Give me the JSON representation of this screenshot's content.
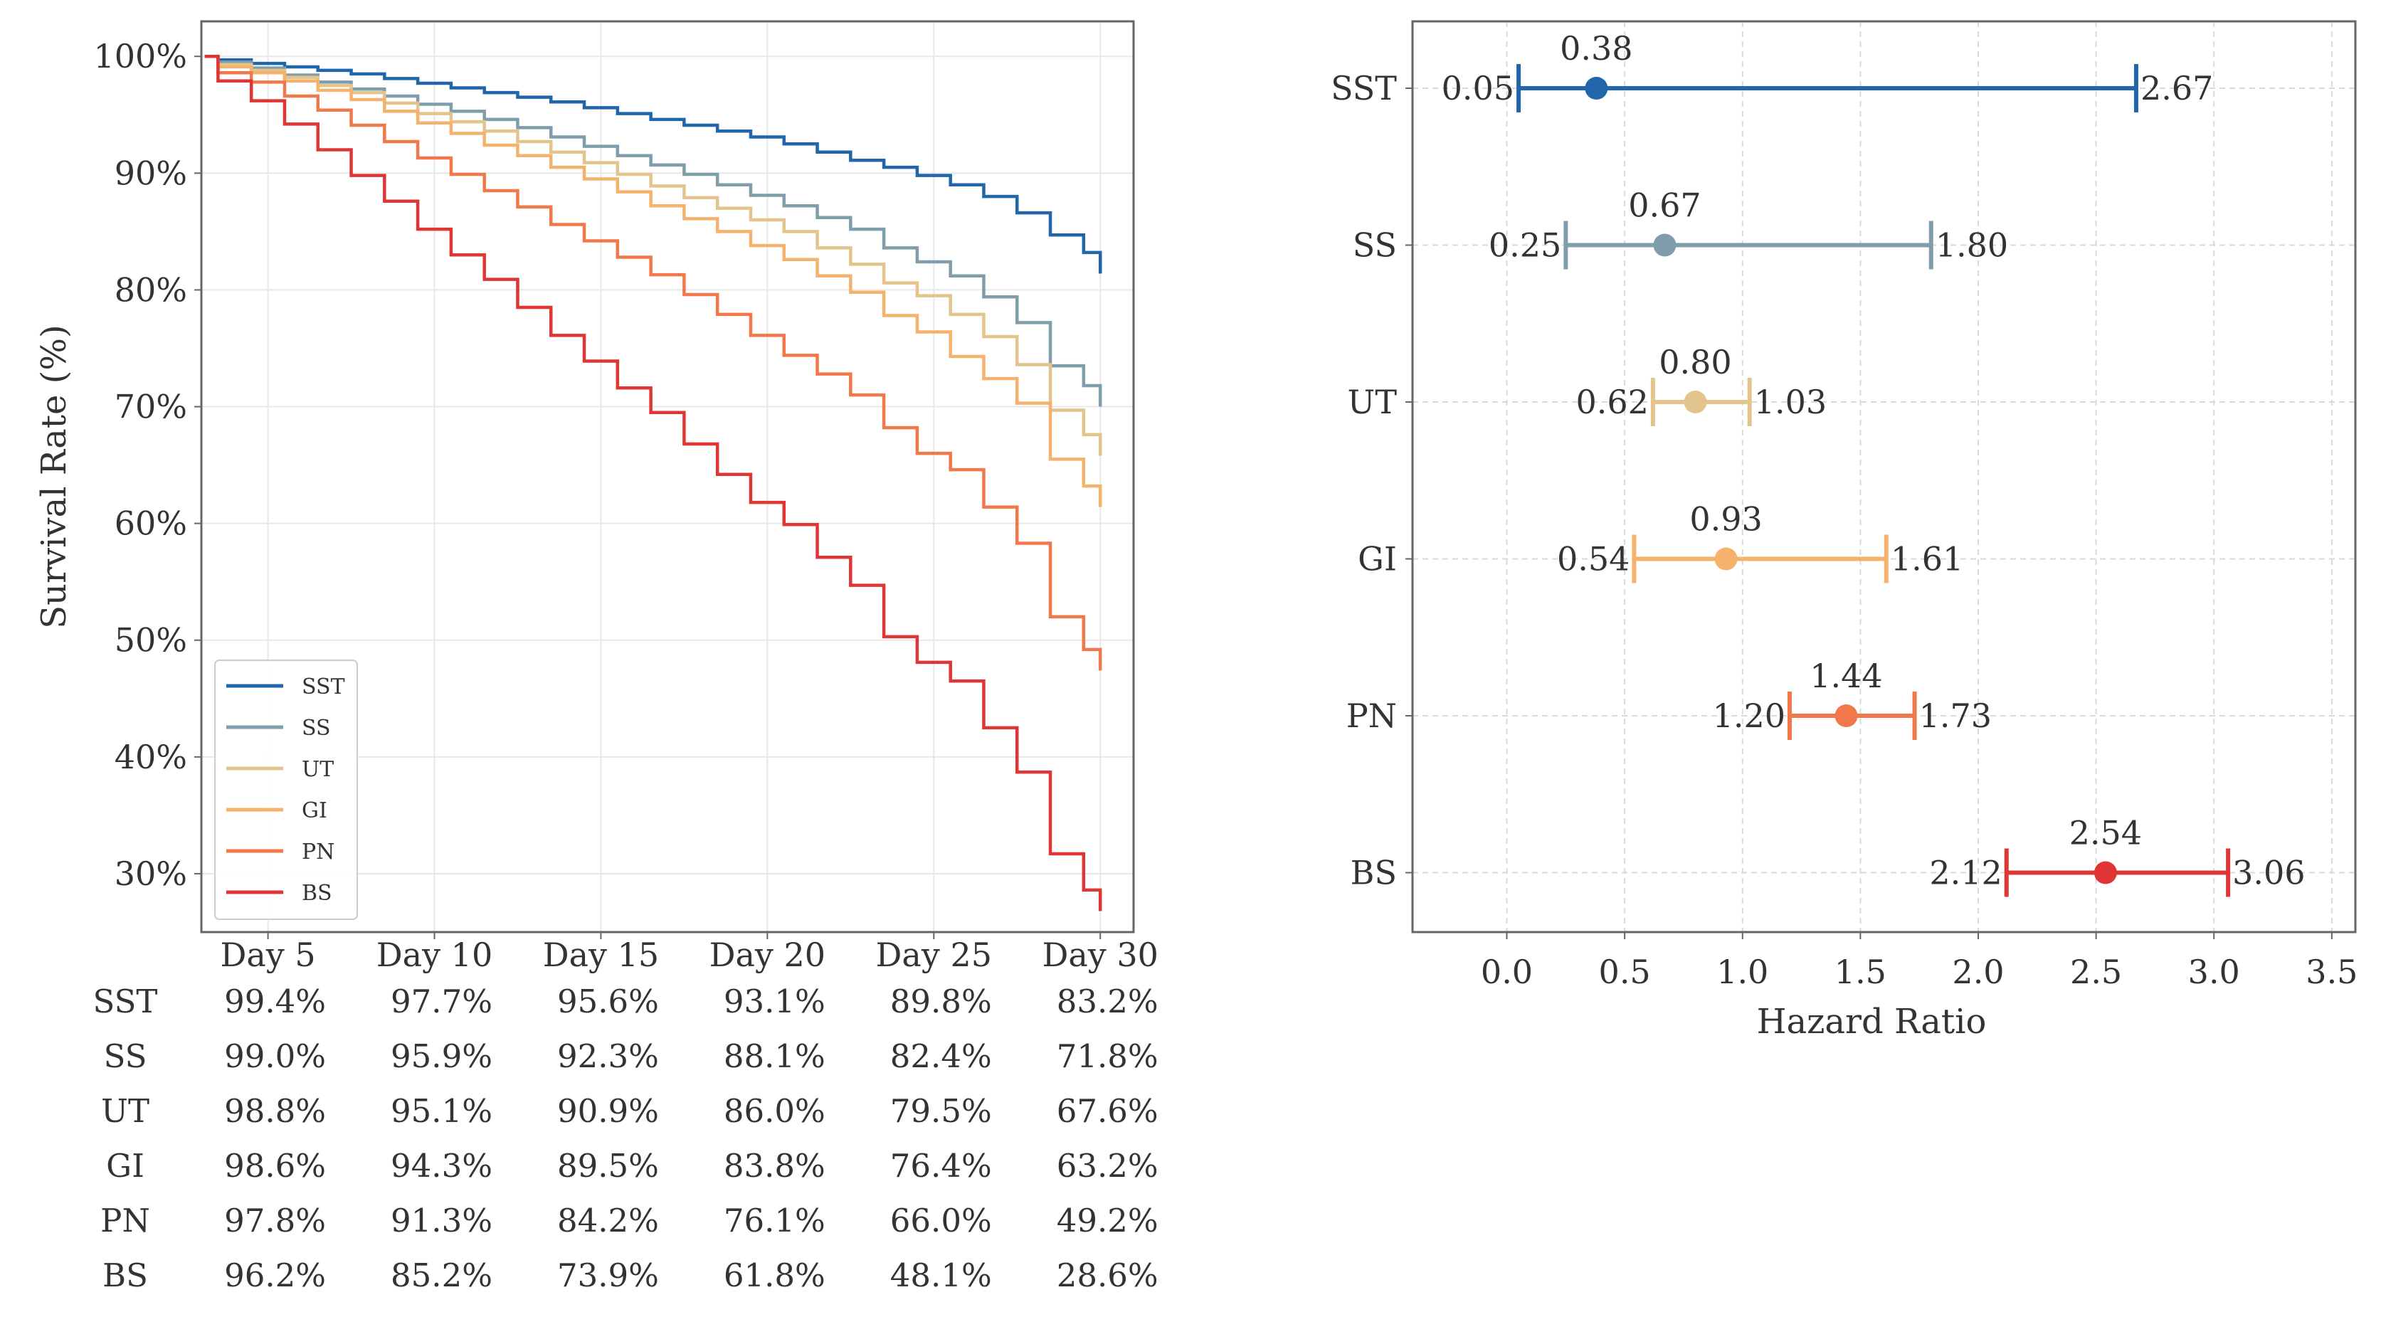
{
  "chart_data": [
    {
      "type": "line",
      "step": true,
      "ylabel": "Survival Rate (%)",
      "xlabel": "",
      "xlim": [
        3,
        31
      ],
      "ylim": [
        25,
        103
      ],
      "y_ticks": [
        {
          "value": 30,
          "label": "30%"
        },
        {
          "value": 40,
          "label": "40%"
        },
        {
          "value": 50,
          "label": "50%"
        },
        {
          "value": 60,
          "label": "60%"
        },
        {
          "value": 70,
          "label": "70%"
        },
        {
          "value": 80,
          "label": "80%"
        },
        {
          "value": 90,
          "label": "90%"
        },
        {
          "value": 100,
          "label": "100%"
        }
      ],
      "x_ticks": [
        {
          "value": 5,
          "label": "Day 5"
        },
        {
          "value": 10,
          "label": "Day 10"
        },
        {
          "value": 15,
          "label": "Day 15"
        },
        {
          "value": 20,
          "label": "Day 20"
        },
        {
          "value": 25,
          "label": "Day 25"
        },
        {
          "value": 30,
          "label": "Day 30"
        }
      ],
      "grid": true,
      "legend_position": "bottom-left",
      "x": [
        4,
        5,
        6,
        7,
        8,
        9,
        10,
        11,
        12,
        13,
        14,
        15,
        16,
        17,
        18,
        19,
        20,
        21,
        22,
        23,
        24,
        25,
        26,
        27,
        28,
        29,
        30
      ],
      "series": [
        {
          "name": "SST",
          "color": "#1f66aa",
          "values": [
            99.7,
            99.4,
            99.1,
            98.8,
            98.5,
            98.1,
            97.7,
            97.3,
            96.9,
            96.5,
            96.1,
            95.6,
            95.1,
            94.6,
            94.1,
            93.6,
            93.1,
            92.5,
            91.8,
            91.1,
            90.5,
            89.8,
            89.0,
            88.0,
            86.6,
            84.7,
            83.2
          ]
        },
        {
          "name": "SS",
          "color": "#7f9daa",
          "values": [
            99.5,
            99.0,
            98.4,
            97.8,
            97.2,
            96.6,
            95.9,
            95.3,
            94.6,
            93.9,
            93.1,
            92.3,
            91.5,
            90.7,
            89.9,
            89.0,
            88.1,
            87.2,
            86.2,
            85.2,
            83.6,
            82.4,
            81.2,
            79.4,
            77.2,
            73.5,
            71.8
          ]
        },
        {
          "name": "UT",
          "color": "#e3c48c",
          "values": [
            99.3,
            98.8,
            98.2,
            97.5,
            96.9,
            96.0,
            95.1,
            94.4,
            93.6,
            92.7,
            91.8,
            90.9,
            89.9,
            88.9,
            87.9,
            87.0,
            86.0,
            85.0,
            83.6,
            82.2,
            80.6,
            79.5,
            77.9,
            76.0,
            73.6,
            69.7,
            67.6
          ]
        },
        {
          "name": "GI",
          "color": "#f5b26c",
          "values": [
            99.1,
            98.6,
            97.9,
            97.1,
            96.3,
            95.3,
            94.3,
            93.4,
            92.4,
            91.5,
            90.5,
            89.5,
            88.4,
            87.2,
            86.1,
            85.0,
            83.8,
            82.6,
            81.2,
            79.8,
            77.8,
            76.4,
            74.3,
            72.4,
            70.3,
            65.5,
            63.2
          ]
        },
        {
          "name": "PN",
          "color": "#f0784a",
          "values": [
            98.6,
            97.8,
            96.6,
            95.4,
            94.1,
            92.7,
            91.3,
            89.9,
            88.5,
            87.1,
            85.6,
            84.2,
            82.8,
            81.3,
            79.6,
            77.9,
            76.1,
            74.4,
            72.8,
            71.0,
            68.2,
            66.0,
            64.6,
            61.4,
            58.3,
            52.0,
            49.2
          ]
        },
        {
          "name": "BS",
          "color": "#e03535",
          "values": [
            97.9,
            96.2,
            94.2,
            92.0,
            89.8,
            87.6,
            85.2,
            83.0,
            80.9,
            78.5,
            76.1,
            73.9,
            71.6,
            69.5,
            66.8,
            64.2,
            61.8,
            59.9,
            57.1,
            54.7,
            50.3,
            48.1,
            46.5,
            42.5,
            38.7,
            31.7,
            28.6
          ]
        }
      ]
    },
    {
      "type": "table",
      "columns": [
        "Day 5",
        "Day 10",
        "Day 15",
        "Day 20",
        "Day 25",
        "Day 30"
      ],
      "rows": [
        {
          "name": "SST",
          "values": [
            "99.4%",
            "97.7%",
            "95.6%",
            "93.1%",
            "89.8%",
            "83.2%"
          ]
        },
        {
          "name": "SS",
          "values": [
            "99.0%",
            "95.9%",
            "92.3%",
            "88.1%",
            "82.4%",
            "71.8%"
          ]
        },
        {
          "name": "UT",
          "values": [
            "98.8%",
            "95.1%",
            "90.9%",
            "86.0%",
            "79.5%",
            "67.6%"
          ]
        },
        {
          "name": "GI",
          "values": [
            "98.6%",
            "94.3%",
            "89.5%",
            "83.8%",
            "76.4%",
            "63.2%"
          ]
        },
        {
          "name": "PN",
          "values": [
            "97.8%",
            "91.3%",
            "84.2%",
            "76.1%",
            "66.0%",
            "49.2%"
          ]
        },
        {
          "name": "BS",
          "values": [
            "96.2%",
            "85.2%",
            "73.9%",
            "61.8%",
            "48.1%",
            "28.6%"
          ]
        }
      ]
    },
    {
      "type": "scatter",
      "subtype": "forest",
      "xlabel": "Hazard Ratio",
      "ylabel": "",
      "xlim": [
        -0.4,
        3.6
      ],
      "x_ticks": [
        {
          "value": 0.0,
          "label": "0.0"
        },
        {
          "value": 0.5,
          "label": "0.5"
        },
        {
          "value": 1.0,
          "label": "1.0"
        },
        {
          "value": 1.5,
          "label": "1.5"
        },
        {
          "value": 2.0,
          "label": "2.0"
        },
        {
          "value": 2.5,
          "label": "2.5"
        },
        {
          "value": 3.0,
          "label": "3.0"
        },
        {
          "value": 3.5,
          "label": "3.5"
        }
      ],
      "reference_line": 1.0,
      "grid": true,
      "series": [
        {
          "name": "SST",
          "color": "#1f66aa",
          "hr": 0.38,
          "lower": 0.05,
          "upper": 2.67,
          "hr_label": "0.38",
          "lower_label": "0.05",
          "upper_label": "2.67"
        },
        {
          "name": "SS",
          "color": "#7f9daa",
          "hr": 0.67,
          "lower": 0.25,
          "upper": 1.8,
          "hr_label": "0.67",
          "lower_label": "0.25",
          "upper_label": "1.80"
        },
        {
          "name": "UT",
          "color": "#e3c48c",
          "hr": 0.8,
          "lower": 0.62,
          "upper": 1.03,
          "hr_label": "0.80",
          "lower_label": "0.62",
          "upper_label": "1.03"
        },
        {
          "name": "GI",
          "color": "#f5b26c",
          "hr": 0.93,
          "lower": 0.54,
          "upper": 1.61,
          "hr_label": "0.93",
          "lower_label": "0.54",
          "upper_label": "1.61"
        },
        {
          "name": "PN",
          "color": "#f0784a",
          "hr": 1.44,
          "lower": 1.2,
          "upper": 1.73,
          "hr_label": "1.44",
          "lower_label": "1.20",
          "upper_label": "1.73"
        },
        {
          "name": "BS",
          "color": "#e03535",
          "hr": 2.54,
          "lower": 2.12,
          "upper": 3.06,
          "hr_label": "2.54",
          "lower_label": "2.12",
          "upper_label": "3.06"
        }
      ]
    }
  ]
}
